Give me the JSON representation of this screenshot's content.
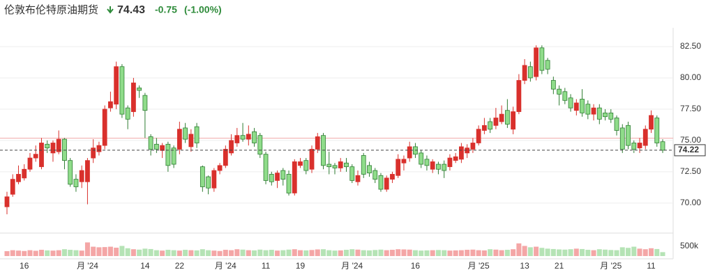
{
  "chart_data": {
    "type": "candlestick",
    "title": "伦敦布伦特原油期货",
    "price": 74.43,
    "change": -0.75,
    "change_pct_label": "(-1.00%)",
    "last": 74.22,
    "prev_close": 75.18,
    "up_color": "#d9302c",
    "down_color": "#8fdc8a",
    "down_edge": "#2e7d32",
    "ylim": [
      67.6,
      84.0
    ],
    "yticks": [
      {
        "value": 70,
        "label": "70.00"
      },
      {
        "value": 72.5,
        "label": "72.50"
      },
      {
        "value": 75,
        "label": "75.00"
      },
      {
        "value": 77.5,
        "label": "77.50"
      },
      {
        "value": 80,
        "label": "80.00"
      },
      {
        "value": 82.5,
        "label": "82.50"
      }
    ],
    "y2lim": [
      0,
      1000000
    ],
    "y2ticks": [
      {
        "value": 500000,
        "label": "500k"
      }
    ],
    "grid": true,
    "categories": [
      null,
      null,
      null,
      "16",
      null,
      null,
      null,
      null,
      null,
      null,
      null,
      null,
      null,
      null,
      "月 '24",
      null,
      null,
      null,
      null,
      null,
      null,
      null,
      null,
      null,
      "14",
      null,
      null,
      null,
      null,
      null,
      "22",
      null,
      null,
      null,
      null,
      null,
      null,
      null,
      "月 '24",
      null,
      null,
      null,
      null,
      null,
      null,
      "11",
      null,
      null,
      null,
      null,
      null,
      "19",
      null,
      null,
      null,
      null,
      null,
      null,
      null,
      null,
      "月 '24",
      null,
      null,
      null,
      null,
      null,
      null,
      null,
      null,
      null,
      null,
      "16",
      null,
      null,
      null,
      null,
      null,
      null,
      null,
      null,
      null,
      null,
      "月 '25",
      null,
      null,
      null,
      null,
      null,
      null,
      null,
      "13",
      null,
      null,
      null,
      null,
      null,
      "21",
      null,
      null,
      null,
      null,
      null,
      null,
      null,
      null,
      "月 '25",
      null,
      null,
      null,
      null,
      null,
      null,
      "11",
      null,
      null
    ],
    "open": [
      69.7,
      70.7,
      71.7,
      72.0,
      72.7,
      73.6,
      72.9,
      74.7,
      74.0,
      74.1,
      75.1,
      73.4,
      71.9,
      71.7,
      71.7,
      73.6,
      74.1,
      74.6,
      77.6,
      77.9,
      80.9,
      77.6,
      77.3,
      79.2,
      78.6,
      75.3,
      74.7,
      74.2,
      74.7,
      74.4,
      74.3,
      76.0,
      74.5,
      76.1,
      72.9,
      72.1,
      71.2,
      72.6,
      73.0,
      74.0,
      74.8,
      75.4,
      75.1,
      75.7,
      75.4,
      73.9,
      72.3,
      71.8,
      72.6,
      72.3,
      70.8,
      73.0,
      73.4,
      72.7,
      74.3,
      75.4,
      73.1,
      73.0,
      72.8,
      73.2,
      72.9,
      71.7,
      73.8,
      73.0,
      72.6,
      72.2,
      71.1,
      71.9,
      72.2,
      73.2,
      73.6,
      74.5,
      74.0,
      73.5,
      72.7,
      73.1,
      73.1,
      72.9,
      73.4,
      73.5,
      74.0,
      74.3,
      74.8,
      75.8,
      76.5,
      76.2,
      76.5,
      77.4,
      75.9,
      77.3,
      79.8,
      80.9,
      80.1,
      82.4,
      81.4,
      79.8,
      79.1,
      78.9,
      78.4,
      77.4,
      78.3,
      77.9,
      77.1,
      77.6,
      77.2,
      77.2,
      76.8,
      76.0,
      76.2,
      74.8,
      74.4,
      74.6,
      75.9,
      76.8,
      74.9
    ],
    "high": [
      70.9,
      72.3,
      73.0,
      73.1,
      74.0,
      74.6,
      75.2,
      75.0,
      75.0,
      75.8,
      75.2,
      73.6,
      72.3,
      73.0,
      73.6,
      75.1,
      74.9,
      77.8,
      78.9,
      81.3,
      81.1,
      77.8,
      80.0,
      79.4,
      78.8,
      75.5,
      75.2,
      74.8,
      74.9,
      74.6,
      76.5,
      76.4,
      75.9,
      76.4,
      73.0,
      72.2,
      72.8,
      73.2,
      74.6,
      75.5,
      76.0,
      76.4,
      76.2,
      76.0,
      75.6,
      74.1,
      72.5,
      72.6,
      72.8,
      72.6,
      73.5,
      73.6,
      73.6,
      74.6,
      75.6,
      75.6,
      74.1,
      73.2,
      73.6,
      73.6,
      73.1,
      72.6,
      74.0,
      73.3,
      72.8,
      72.4,
      72.2,
      72.5,
      73.9,
      73.8,
      74.9,
      74.8,
      74.2,
      73.8,
      73.5,
      73.3,
      73.4,
      73.9,
      74.0,
      74.8,
      74.7,
      75.2,
      76.2,
      76.8,
      76.8,
      77.6,
      77.8,
      78.3,
      77.7,
      80.3,
      81.5,
      81.3,
      82.6,
      82.6,
      81.6,
      80.1,
      79.4,
      79.2,
      78.7,
      78.3,
      79.1,
      78.2,
      77.9,
      77.9,
      77.5,
      77.5,
      77.0,
      76.3,
      76.5,
      75.0,
      75.2,
      76.2,
      77.4,
      77.0,
      75.1
    ],
    "low": [
      69.1,
      70.5,
      71.5,
      71.8,
      72.5,
      73.3,
      72.7,
      74.0,
      73.3,
      73.9,
      72.7,
      71.3,
      70.9,
      71.2,
      69.9,
      73.2,
      73.8,
      74.3,
      77.3,
      77.5,
      76.8,
      75.9,
      76.9,
      78.4,
      75.2,
      73.8,
      74.0,
      73.6,
      72.5,
      72.8,
      73.9,
      74.8,
      74.1,
      74.4,
      70.9,
      70.7,
      70.9,
      72.3,
      72.8,
      73.8,
      74.5,
      74.9,
      74.6,
      74.5,
      73.6,
      71.5,
      71.4,
      71.2,
      71.4,
      70.6,
      70.6,
      72.8,
      72.3,
      72.4,
      74.0,
      72.7,
      72.3,
      72.3,
      72.5,
      72.5,
      71.6,
      71.4,
      72.0,
      72.1,
      71.6,
      70.9,
      70.9,
      71.6,
      72.0,
      72.6,
      73.3,
      73.6,
      72.8,
      72.6,
      72.4,
      72.3,
      72.0,
      72.6,
      73.2,
      73.2,
      73.6,
      74.0,
      74.6,
      75.5,
      75.6,
      75.9,
      76.3,
      76.0,
      75.5,
      77.1,
      79.5,
      79.7,
      79.8,
      80.3,
      80.3,
      78.7,
      77.8,
      77.9,
      77.3,
      77.0,
      76.9,
      76.7,
      76.6,
      76.3,
      76.6,
      76.4,
      75.4,
      74.0,
      74.3,
      74.0,
      74.0,
      74.3,
      75.6,
      74.5,
      74.0
    ],
    "close": [
      70.5,
      71.9,
      72.3,
      72.7,
      73.6,
      73.9,
      74.8,
      74.4,
      74.8,
      75.1,
      73.4,
      71.5,
      71.3,
      72.6,
      73.4,
      74.4,
      74.6,
      77.5,
      78.1,
      80.9,
      77.1,
      76.7,
      79.6,
      79.0,
      77.4,
      74.3,
      74.3,
      74.6,
      73.0,
      73.1,
      75.9,
      75.1,
      75.5,
      74.8,
      71.3,
      71.2,
      72.6,
      73.0,
      74.3,
      75.0,
      75.4,
      75.1,
      75.5,
      74.8,
      73.9,
      71.8,
      71.7,
      72.4,
      71.9,
      70.8,
      73.3,
      73.3,
      72.6,
      74.3,
      75.3,
      73.0,
      72.9,
      72.8,
      73.3,
      72.9,
      71.8,
      72.2,
      72.3,
      72.4,
      71.9,
      71.1,
      72.0,
      72.3,
      73.5,
      73.5,
      74.5,
      73.9,
      73.1,
      73.0,
      73.3,
      72.7,
      72.6,
      73.6,
      73.7,
      74.5,
      74.4,
      74.8,
      75.9,
      76.2,
      75.9,
      76.8,
      77.1,
      76.3,
      77.3,
      79.8,
      81.0,
      80.0,
      82.4,
      80.6,
      80.7,
      79.1,
      78.7,
      78.2,
      77.6,
      78.0,
      77.2,
      77.1,
      77.6,
      76.7,
      76.9,
      76.7,
      75.8,
      74.3,
      74.6,
      74.3,
      74.8,
      75.9,
      77.0,
      74.8,
      74.22
    ],
    "volume": [
      250000,
      300000,
      280000,
      260000,
      300000,
      270000,
      320000,
      290000,
      280000,
      300000,
      350000,
      320000,
      300000,
      280000,
      700000,
      480000,
      450000,
      460000,
      480000,
      430000,
      520000,
      400000,
      350000,
      330000,
      380000,
      360000,
      300000,
      280000,
      320000,
      300000,
      280000,
      320000,
      300000,
      290000,
      350000,
      300000,
      280000,
      260000,
      320000,
      300000,
      350000,
      330000,
      300000,
      290000,
      330000,
      300000,
      320000,
      280000,
      300000,
      330000,
      350000,
      300000,
      290000,
      310000,
      340000,
      350000,
      300000,
      280000,
      290000,
      320000,
      350000,
      330000,
      300000,
      290000,
      310000,
      330000,
      300000,
      320000,
      350000,
      340000,
      330000,
      300000,
      280000,
      290000,
      300000,
      310000,
      300000,
      280000,
      290000,
      300000,
      320000,
      330000,
      300000,
      290000,
      350000,
      330000,
      300000,
      320000,
      350000,
      650000,
      520000,
      450000,
      480000,
      420000,
      380000,
      360000,
      340000,
      330000,
      350000,
      380000,
      360000,
      320000,
      300000,
      350000,
      330000,
      310000,
      300000,
      450000,
      420000,
      480000,
      380000,
      350000,
      400000,
      360000,
      200000
    ]
  }
}
